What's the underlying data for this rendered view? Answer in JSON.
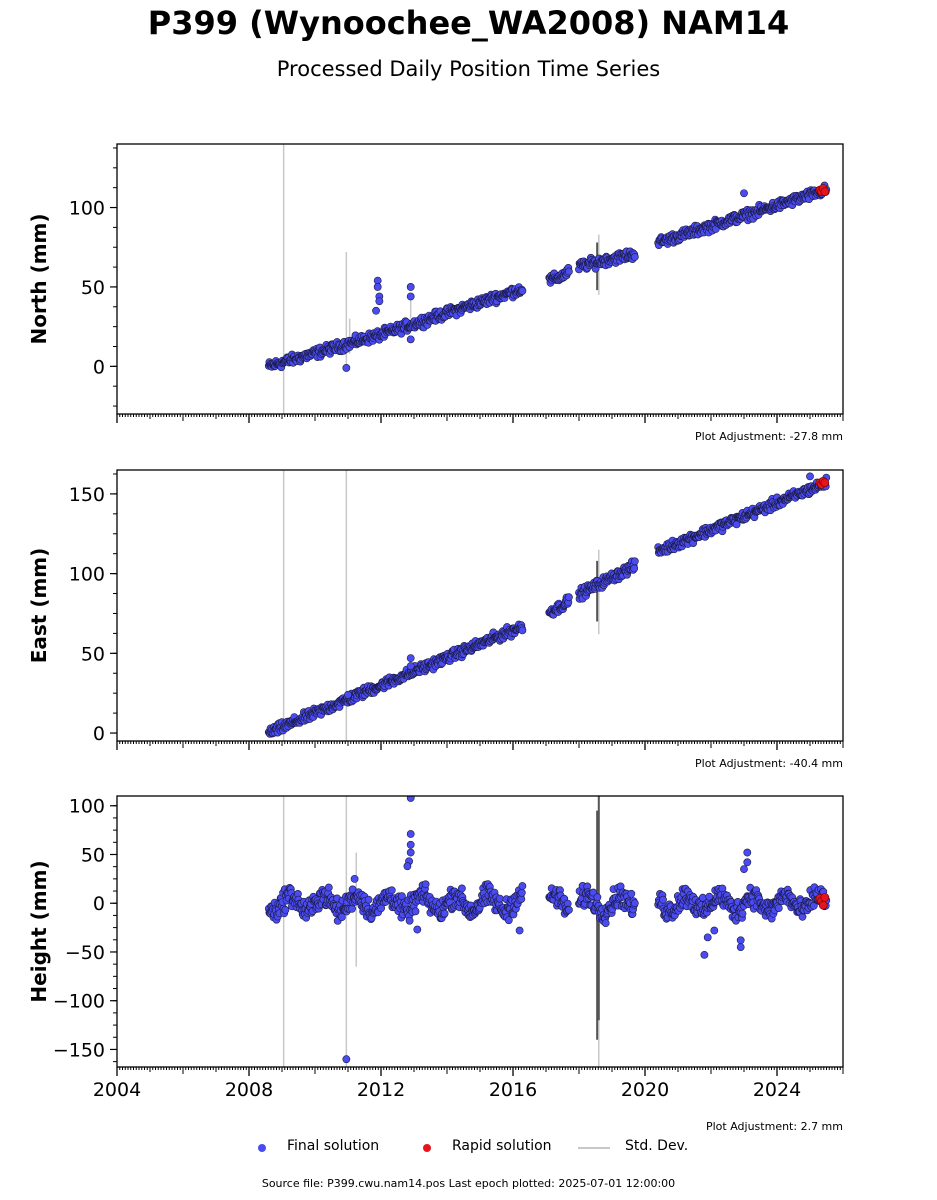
{
  "title": "P399 (Wynoochee_WA2008) NAM14",
  "subtitle": "Processed Daily Position Time Series",
  "footer": {
    "source_text": "Source file: P399.cwu.nam14.pos  Last epoch plotted: 2025-07-01 12:00:00"
  },
  "legend": {
    "final_label": "Final solution",
    "rapid_label": "Rapid solution",
    "std_label": "Std. Dev.",
    "placement": "below plots"
  },
  "colors": {
    "final": "#4b4bf2",
    "final_edge": "#1a1a40",
    "rapid": "#e8141c",
    "std": "#c8c8c8",
    "std_dark": "#555555",
    "frame": "#000000"
  },
  "chart_data": [
    {
      "type": "scatter",
      "ylabel": "North (mm)",
      "ylim": [
        -30,
        140
      ],
      "yticks": [
        0,
        50,
        100
      ],
      "adjustment_text": "Plot Adjustment: -27.8 mm",
      "xlim": [
        2004,
        2026
      ],
      "xticks": [
        2004,
        2008,
        2012,
        2016,
        2020,
        2024
      ],
      "xtick_labels": [],
      "trend": {
        "segments": [
          [
            2008.6,
            2016.3
          ],
          [
            2017.1,
            2017.7
          ],
          [
            2018.0,
            2019.7
          ],
          [
            2020.4,
            2025.5
          ]
        ],
        "points": [
          [
            2008.6,
            0
          ],
          [
            2012.0,
            20
          ],
          [
            2016.3,
            49
          ],
          [
            2017.4,
            56
          ],
          [
            2018.0,
            63
          ],
          [
            2019.7,
            71
          ],
          [
            2020.4,
            78
          ],
          [
            2025.5,
            111
          ]
        ],
        "noise": 2.5
      },
      "outliers": [
        [
          2011.9,
          54
        ],
        [
          2011.9,
          50
        ],
        [
          2011.95,
          44
        ],
        [
          2011.95,
          41
        ],
        [
          2011.85,
          35
        ],
        [
          2012.9,
          50
        ],
        [
          2012.9,
          44
        ],
        [
          2012.9,
          17
        ],
        [
          2010.95,
          -1
        ],
        [
          2023.0,
          109
        ]
      ],
      "rapid": [
        [
          2025.3,
          111
        ],
        [
          2025.35,
          110
        ],
        [
          2025.4,
          112
        ],
        [
          2025.45,
          110
        ]
      ],
      "std_lines": [
        [
          2009.05,
          -30,
          140
        ],
        [
          2010.95,
          0,
          72
        ],
        [
          2011.05,
          8,
          30
        ],
        [
          2012.9,
          30,
          46
        ],
        [
          2018.6,
          45,
          83
        ]
      ],
      "std_dark_lines": [
        [
          2018.55,
          48,
          78
        ]
      ]
    },
    {
      "type": "scatter",
      "ylabel": "East (mm)",
      "ylim": [
        -5,
        165
      ],
      "yticks": [
        0,
        50,
        100,
        150
      ],
      "adjustment_text": "Plot Adjustment: -40.4 mm",
      "xlim": [
        2004,
        2026
      ],
      "xticks": [
        2004,
        2008,
        2012,
        2016,
        2020,
        2024
      ],
      "xtick_labels": [],
      "trend": {
        "segments": [
          [
            2008.6,
            2016.3
          ],
          [
            2017.1,
            2017.7
          ],
          [
            2018.0,
            2019.7
          ],
          [
            2020.4,
            2025.5
          ]
        ],
        "points": [
          [
            2008.6,
            0
          ],
          [
            2012.0,
            30
          ],
          [
            2016.3,
            67
          ],
          [
            2017.4,
            79
          ],
          [
            2018.0,
            87
          ],
          [
            2019.7,
            105
          ],
          [
            2020.4,
            114
          ],
          [
            2025.5,
            157
          ]
        ],
        "noise": 2.5
      },
      "outliers": [
        [
          2012.9,
          47
        ],
        [
          2012.9,
          42
        ],
        [
          2025.0,
          161
        ],
        [
          2011.0,
          24
        ]
      ],
      "rapid": [
        [
          2025.3,
          157
        ],
        [
          2025.35,
          156
        ],
        [
          2025.4,
          158
        ],
        [
          2025.45,
          157
        ]
      ],
      "std_lines": [
        [
          2009.05,
          -5,
          165
        ],
        [
          2010.95,
          -5,
          165
        ],
        [
          2018.6,
          62,
          115
        ]
      ],
      "std_dark_lines": [
        [
          2018.55,
          70,
          108
        ]
      ]
    },
    {
      "type": "scatter",
      "ylabel": "Height (mm)",
      "ylim": [
        -168,
        110
      ],
      "yticks": [
        -150,
        -100,
        -50,
        0,
        50,
        100
      ],
      "adjustment_text": "Plot Adjustment: 2.7 mm",
      "xlim": [
        2004,
        2026
      ],
      "xticks": [
        2004,
        2008,
        2012,
        2016,
        2020,
        2024
      ],
      "xtick_labels": [
        "2004",
        "2008",
        "2012",
        "2016",
        "2020",
        "2024"
      ],
      "trend": {
        "segments": [
          [
            2008.6,
            2016.3
          ],
          [
            2017.1,
            2017.7
          ],
          [
            2018.0,
            2019.7
          ],
          [
            2020.4,
            2025.5
          ]
        ],
        "points": [
          [
            2008.6,
            0
          ],
          [
            2025.5,
            0
          ]
        ],
        "noise": 9,
        "seasonal": 8
      },
      "outliers": [
        [
          2012.9,
          108
        ],
        [
          2012.9,
          71
        ],
        [
          2012.9,
          60
        ],
        [
          2012.9,
          52
        ],
        [
          2012.85,
          43
        ],
        [
          2012.8,
          38
        ],
        [
          2010.95,
          -160
        ],
        [
          2011.2,
          25
        ],
        [
          2021.8,
          -53
        ],
        [
          2021.9,
          -35
        ],
        [
          2022.9,
          -38
        ],
        [
          2022.9,
          -45
        ],
        [
          2023.1,
          52
        ],
        [
          2023.1,
          42
        ],
        [
          2023.0,
          35
        ],
        [
          2016.2,
          -28
        ],
        [
          2013.1,
          -27
        ],
        [
          2022.1,
          -28
        ]
      ],
      "rapid": [
        [
          2025.3,
          5
        ],
        [
          2025.35,
          2
        ],
        [
          2025.4,
          -2
        ],
        [
          2025.45,
          6
        ]
      ],
      "std_lines": [
        [
          2009.05,
          -168,
          110
        ],
        [
          2010.95,
          -168,
          110
        ],
        [
          2011.25,
          -65,
          52
        ],
        [
          2018.6,
          -168,
          110
        ]
      ],
      "std_dark_lines": [
        [
          2018.55,
          -140,
          95
        ],
        [
          2018.6,
          -120,
          110
        ]
      ]
    }
  ]
}
